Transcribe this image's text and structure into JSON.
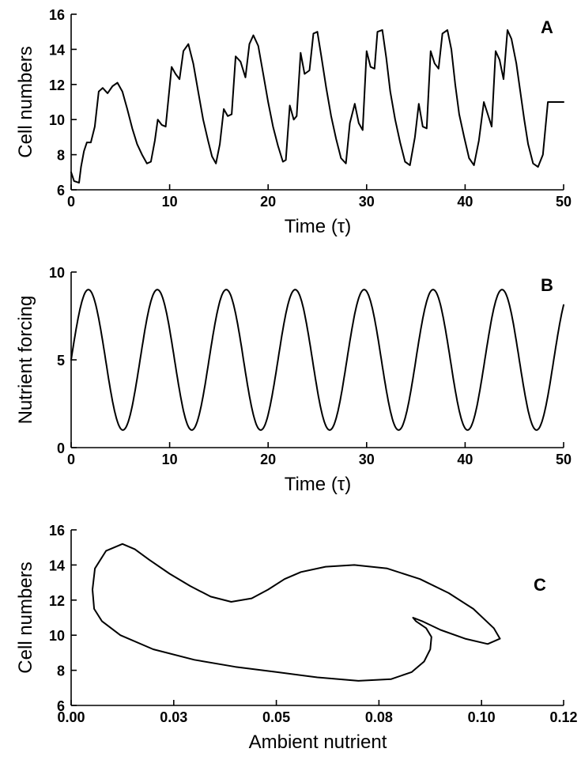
{
  "panels": [
    {
      "id": "A",
      "letter": "A",
      "xlabel": "Time (τ)",
      "ylabel": "Cell numbers"
    },
    {
      "id": "B",
      "letter": "B",
      "xlabel": "Time (τ)",
      "ylabel": "Nutrient forcing"
    },
    {
      "id": "C",
      "letter": "C",
      "xlabel": "Ambient nutrient",
      "ylabel": "Cell numbers"
    }
  ],
  "chart_data": [
    {
      "type": "line",
      "panel": "A",
      "xlabel": "Time (τ)",
      "ylabel": "Cell numbers",
      "xlim": [
        0,
        50
      ],
      "ylim": [
        6,
        16
      ],
      "xticks": [
        0,
        10,
        20,
        30,
        40,
        50
      ],
      "yticks": [
        6,
        8,
        10,
        12,
        14,
        16
      ],
      "grid": false,
      "series": [
        {
          "x": [
            0,
            0.3,
            0.8,
            1.0,
            1.3,
            1.6,
            2.0,
            2.4,
            2.8,
            3.2,
            3.7,
            4.2,
            4.7,
            5.2,
            5.7,
            6.2,
            6.7,
            7.2,
            7.7,
            8.1,
            8.5,
            8.8,
            9.2,
            9.6,
            10.2,
            10.6,
            11.0,
            11.4,
            11.9,
            12.4,
            12.9,
            13.4,
            13.9,
            14.3,
            14.7,
            15.1,
            15.5,
            15.9,
            16.3,
            16.7,
            17.2,
            17.7,
            18.1,
            18.5,
            19.0,
            19.5,
            20.0,
            20.5,
            21.0,
            21.5,
            21.8,
            22.2,
            22.6,
            22.9,
            23.3,
            23.7,
            24.2,
            24.6,
            25.0,
            25.4,
            25.9,
            26.4,
            26.9,
            27.4,
            27.9,
            28.3,
            28.8,
            29.2,
            29.6,
            30.0,
            30.4,
            30.8,
            31.1,
            31.6,
            32.0,
            32.4,
            32.9,
            33.4,
            33.9,
            34.4,
            34.9,
            35.3,
            35.7,
            36.1,
            36.5,
            36.9,
            37.3,
            37.7,
            38.2,
            38.6,
            39.0,
            39.4,
            39.9,
            40.4,
            40.9,
            41.4,
            41.9,
            42.3,
            42.7,
            43.1,
            43.5,
            43.9,
            44.3,
            44.7,
            45.2,
            45.6,
            46.0,
            46.4,
            46.9,
            47.4,
            47.9,
            48.4,
            48.9,
            49.3,
            49.6,
            50.0
          ],
          "y": [
            7.0,
            6.5,
            6.4,
            7.3,
            8.2,
            8.7,
            8.7,
            9.6,
            11.6,
            11.8,
            11.5,
            11.9,
            12.1,
            11.6,
            10.6,
            9.5,
            8.6,
            8.0,
            7.5,
            7.6,
            8.8,
            10.0,
            9.7,
            9.6,
            13.0,
            12.6,
            12.3,
            13.9,
            14.3,
            13.2,
            11.6,
            10.0,
            8.8,
            7.9,
            7.5,
            8.6,
            10.6,
            10.2,
            10.3,
            13.6,
            13.3,
            12.4,
            14.3,
            14.8,
            14.2,
            12.6,
            11.0,
            9.6,
            8.5,
            7.6,
            7.7,
            10.8,
            10.0,
            10.2,
            13.8,
            12.6,
            12.8,
            14.9,
            15.0,
            13.6,
            11.8,
            10.2,
            8.9,
            7.8,
            7.5,
            9.8,
            10.9,
            9.8,
            9.4,
            13.9,
            13.0,
            12.9,
            15.0,
            15.1,
            13.5,
            11.6,
            10.0,
            8.7,
            7.6,
            7.4,
            9.0,
            10.9,
            9.6,
            9.5,
            13.9,
            13.2,
            12.9,
            14.9,
            15.1,
            14.0,
            12.0,
            10.3,
            9.0,
            7.8,
            7.4,
            8.8,
            11.0,
            10.3,
            9.6,
            13.9,
            13.4,
            12.3,
            15.1,
            14.6,
            13.2,
            11.6,
            10.0,
            8.6,
            7.5,
            7.3,
            8.0,
            11.0,
            11.0,
            11.0,
            11.0,
            11.0
          ]
        }
      ]
    },
    {
      "type": "line",
      "panel": "B",
      "xlabel": "Time (τ)",
      "ylabel": "Nutrient forcing",
      "xlim": [
        0,
        50
      ],
      "ylim": [
        0,
        10
      ],
      "xticks": [
        0,
        10,
        20,
        30,
        40,
        50
      ],
      "yticks": [
        0,
        5,
        10
      ],
      "grid": false,
      "series": [
        {
          "function": "5 + 4*sin(2*pi*x/7)",
          "x": [
            0,
            1.75,
            5.25,
            8.75,
            12.25,
            15.75,
            19.25,
            22.75,
            26.25,
            29.75,
            33.25,
            36.75,
            40.25,
            43.75,
            47.25,
            50
          ],
          "y": [
            5.0,
            9.0,
            1.0,
            9.0,
            1.0,
            9.0,
            1.0,
            9.0,
            1.0,
            9.0,
            1.0,
            9.0,
            1.0,
            9.0,
            1.0,
            8.5
          ]
        }
      ]
    },
    {
      "type": "line",
      "panel": "C",
      "xlabel": "Ambient nutrient",
      "ylabel": "Cell numbers",
      "xlim": [
        0,
        0.12
      ],
      "ylim": [
        6,
        16
      ],
      "xticks": [
        0.0,
        0.025,
        0.05,
        0.075,
        0.1,
        0.12
      ],
      "xtick_labels": [
        "0.00",
        "0.03",
        "0.05",
        "0.08",
        "0.10",
        "0.12"
      ],
      "yticks": [
        6,
        8,
        10,
        12,
        14,
        16
      ],
      "grid": false,
      "series": [
        {
          "closed": true,
          "x": [
            0.0125,
            0.0085,
            0.0058,
            0.0052,
            0.0056,
            0.0075,
            0.012,
            0.02,
            0.03,
            0.04,
            0.05,
            0.06,
            0.07,
            0.078,
            0.083,
            0.086,
            0.0875,
            0.0878,
            0.0865,
            0.084,
            0.0833,
            0.0855,
            0.09,
            0.096,
            0.1015,
            0.1045,
            0.103,
            0.098,
            0.092,
            0.085,
            0.077,
            0.069,
            0.062,
            0.056,
            0.052,
            0.048,
            0.044,
            0.039,
            0.034,
            0.029,
            0.024,
            0.019,
            0.0155,
            0.0125
          ],
          "y": [
            15.2,
            14.8,
            13.8,
            12.6,
            11.5,
            10.8,
            10.0,
            9.2,
            8.6,
            8.2,
            7.9,
            7.6,
            7.4,
            7.5,
            7.9,
            8.5,
            9.2,
            9.9,
            10.4,
            10.8,
            11.0,
            10.8,
            10.3,
            9.8,
            9.5,
            9.8,
            10.4,
            11.5,
            12.4,
            13.2,
            13.8,
            14.0,
            13.9,
            13.6,
            13.2,
            12.6,
            12.1,
            11.9,
            12.2,
            12.8,
            13.5,
            14.3,
            14.9,
            15.2
          ]
        }
      ]
    }
  ]
}
